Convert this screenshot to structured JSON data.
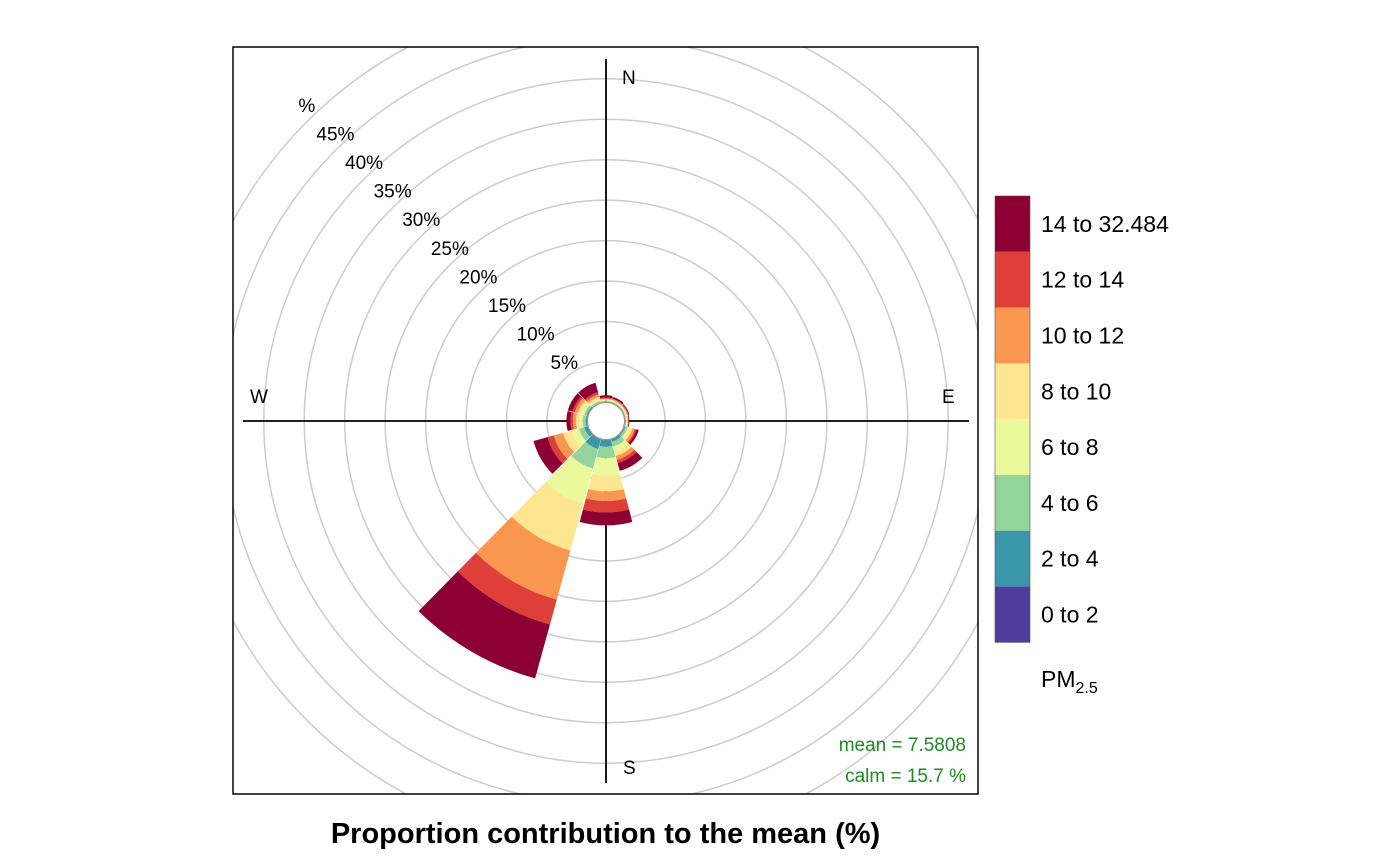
{
  "chart_data": {
    "type": "polar-stacked-bar",
    "xlabel": "Proportion contribution to the mean (%)",
    "compass": {
      "north": "N",
      "east": "E",
      "south": "S",
      "west": "W"
    },
    "ring_labels": [
      "5%",
      "10%",
      "15%",
      "20%",
      "25%",
      "30%",
      "35%",
      "40%",
      "45%",
      "%"
    ],
    "ring_values": [
      5,
      10,
      15,
      20,
      25,
      30,
      35,
      40,
      45,
      50
    ],
    "legend": {
      "title": "PM",
      "title_subscript": "2.5",
      "bins": [
        "0 to 2",
        "2 to 4",
        "4 to 6",
        "6 to 8",
        "8 to 10",
        "10 to 12",
        "12 to 14",
        "14 to 32.484"
      ],
      "colors": [
        "#4E3D9A",
        "#3A97AA",
        "#93D49A",
        "#EAF99C",
        "#FEE590",
        "#F99750",
        "#DE3F38",
        "#8C0034"
      ]
    },
    "directions_deg": [
      0,
      30,
      60,
      90,
      120,
      150,
      180,
      210,
      240,
      270,
      300,
      330
    ],
    "series": [
      {
        "name": "0 to 2",
        "values": [
          0.0,
          0.0,
          0.0,
          0.0,
          0.0,
          0.0,
          0.1,
          0.1,
          0.0,
          0.0,
          0.0,
          0.0
        ]
      },
      {
        "name": "2 to 4",
        "values": [
          0.1,
          0.1,
          0.1,
          0.1,
          0.2,
          0.4,
          0.8,
          1.2,
          0.5,
          0.2,
          0.2,
          0.1
        ]
      },
      {
        "name": "4 to 6",
        "values": [
          0.1,
          0.1,
          0.1,
          0.1,
          0.3,
          0.6,
          1.4,
          2.5,
          0.7,
          0.4,
          0.3,
          0.2
        ]
      },
      {
        "name": "6 to 8",
        "values": [
          0.1,
          0.1,
          0.1,
          0.1,
          0.3,
          0.7,
          2.2,
          4.5,
          0.9,
          0.4,
          0.4,
          0.2
        ]
      },
      {
        "name": "8 to 10",
        "values": [
          0.1,
          0.1,
          0.1,
          0.1,
          0.3,
          0.5,
          1.9,
          6.0,
          1.1,
          0.4,
          0.4,
          0.3
        ]
      },
      {
        "name": "10 to 12",
        "values": [
          0.1,
          0.1,
          0.1,
          0.1,
          0.3,
          0.5,
          1.2,
          6.3,
          1.2,
          0.4,
          0.4,
          0.3
        ]
      },
      {
        "name": "12 to 14",
        "values": [
          0.1,
          0.1,
          0.1,
          0.0,
          0.2,
          0.4,
          1.4,
          3.2,
          0.8,
          0.3,
          0.3,
          0.3
        ]
      },
      {
        "name": "14 to 32.484",
        "values": [
          0.3,
          0.2,
          0.1,
          0.1,
          0.3,
          1.0,
          1.6,
          6.9,
          1.8,
          0.5,
          0.6,
          1.2
        ]
      }
    ],
    "stats": {
      "mean": "mean  =  7.5808",
      "calm": "calm =  15.7 %"
    },
    "calm_circle_percent": 2.3,
    "grid": true
  }
}
